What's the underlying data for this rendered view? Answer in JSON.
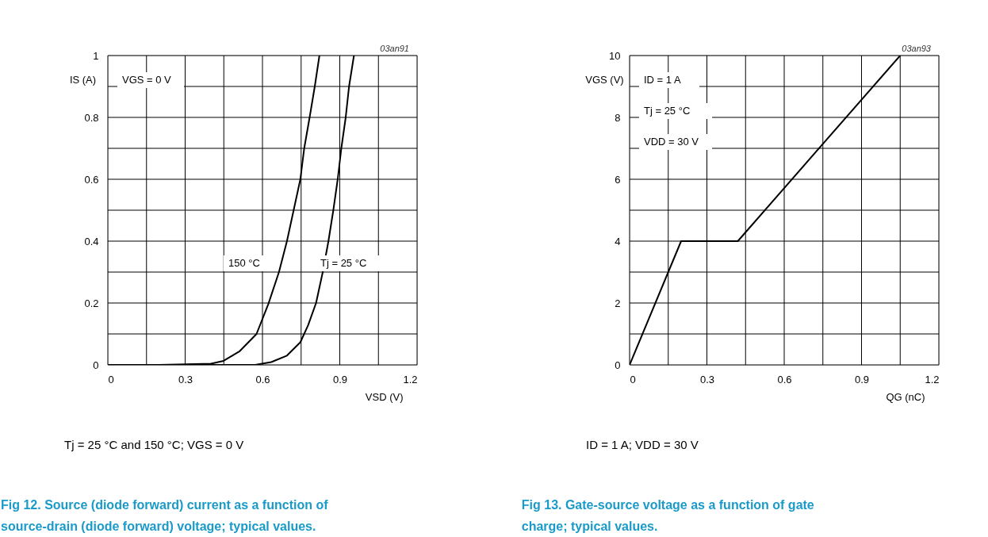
{
  "chart_data": [
    {
      "type": "line",
      "title": "Fig 12. Source (diode forward) current as a function of source-drain (diode forward) voltage; typical values.",
      "xlabel": "VSD (V)",
      "ylabel": "IS (A)",
      "xlim": [
        0,
        1.2
      ],
      "ylim": [
        0,
        1
      ],
      "xticks": [
        0,
        {
          "value": 0.15,
          "label": null
        },
        0.3,
        {
          "value": 0.45,
          "label": null
        },
        0.6,
        {
          "value": 0.75,
          "label": null
        },
        0.9,
        {
          "value": 1.05,
          "label": null
        },
        1.2
      ],
      "yticks": [
        0,
        {
          "value": 0.1,
          "label": null
        },
        0.2,
        {
          "value": 0.3,
          "label": null
        },
        0.4,
        {
          "value": 0.5,
          "label": null
        },
        0.6,
        {
          "value": 0.7,
          "label": null
        },
        0.8,
        {
          "value": 0.9,
          "label": null
        },
        1
      ],
      "grid": true,
      "legend": false,
      "line_style": "solid",
      "marker": "none",
      "series": [
        {
          "color": "#000000",
          "x": [
            0,
            0.2,
            0.4,
            0.449,
            0.51,
            0.577,
            0.623,
            0.664,
            0.695,
            0.721,
            0.747,
            0.762,
            0.783,
            0.803,
            0.821
          ],
          "values": [
            0,
            0,
            0.004,
            0.013,
            0.043,
            0.1,
            0.197,
            0.3,
            0.4,
            0.5,
            0.6,
            0.7,
            0.8,
            0.9,
            1
          ]
        },
        {
          "color": "#000000",
          "x": [
            0,
            0.3,
            0.572,
            0.634,
            0.695,
            0.747,
            0.777,
            0.808,
            0.834,
            0.856,
            0.875,
            0.892,
            0.906,
            0.923,
            0.936,
            0.955
          ],
          "values": [
            0,
            0,
            0,
            0.009,
            0.03,
            0.073,
            0.128,
            0.2,
            0.3,
            0.4,
            0.5,
            0.6,
            0.7,
            0.8,
            0.9,
            1
          ]
        }
      ],
      "annotations": [
        "VGS = 0 V",
        "150 °C",
        "Tj = 25 °C",
        "03an91",
        "Tj = 25 °C and 150 °C; VGS = 0 V"
      ]
    },
    {
      "type": "line",
      "title": "Fig 13. Gate-source voltage as a function of gate charge; typical values.",
      "xlabel": "QG (nC)",
      "ylabel": "VGS (V)",
      "xlim": [
        0,
        1.2
      ],
      "ylim": [
        0,
        10
      ],
      "xticks": [
        0,
        {
          "value": 0.15,
          "label": null
        },
        0.3,
        {
          "value": 0.45,
          "label": null
        },
        0.6,
        {
          "value": 0.75,
          "label": null
        },
        0.9,
        {
          "value": 1.05,
          "label": null
        },
        1.2
      ],
      "yticks": [
        0,
        {
          "value": 1,
          "label": null
        },
        2,
        {
          "value": 3,
          "label": null
        },
        4,
        {
          "value": 5,
          "label": null
        },
        6,
        {
          "value": 7,
          "label": null
        },
        8,
        {
          "value": 9,
          "label": null
        },
        10
      ],
      "grid": true,
      "legend": false,
      "line_style": "solid",
      "marker": "none",
      "series": [
        {
          "color": "#000000",
          "x": [
            0,
            0.2,
            0.42,
            1.05
          ],
          "values": [
            0,
            4,
            4,
            10
          ]
        }
      ],
      "annotations": [
        "ID = 1 A",
        "Tj = 25 °C",
        "VDD = 30 V",
        "03an93",
        "ID = 1 A; VDD = 30 V"
      ]
    }
  ]
}
